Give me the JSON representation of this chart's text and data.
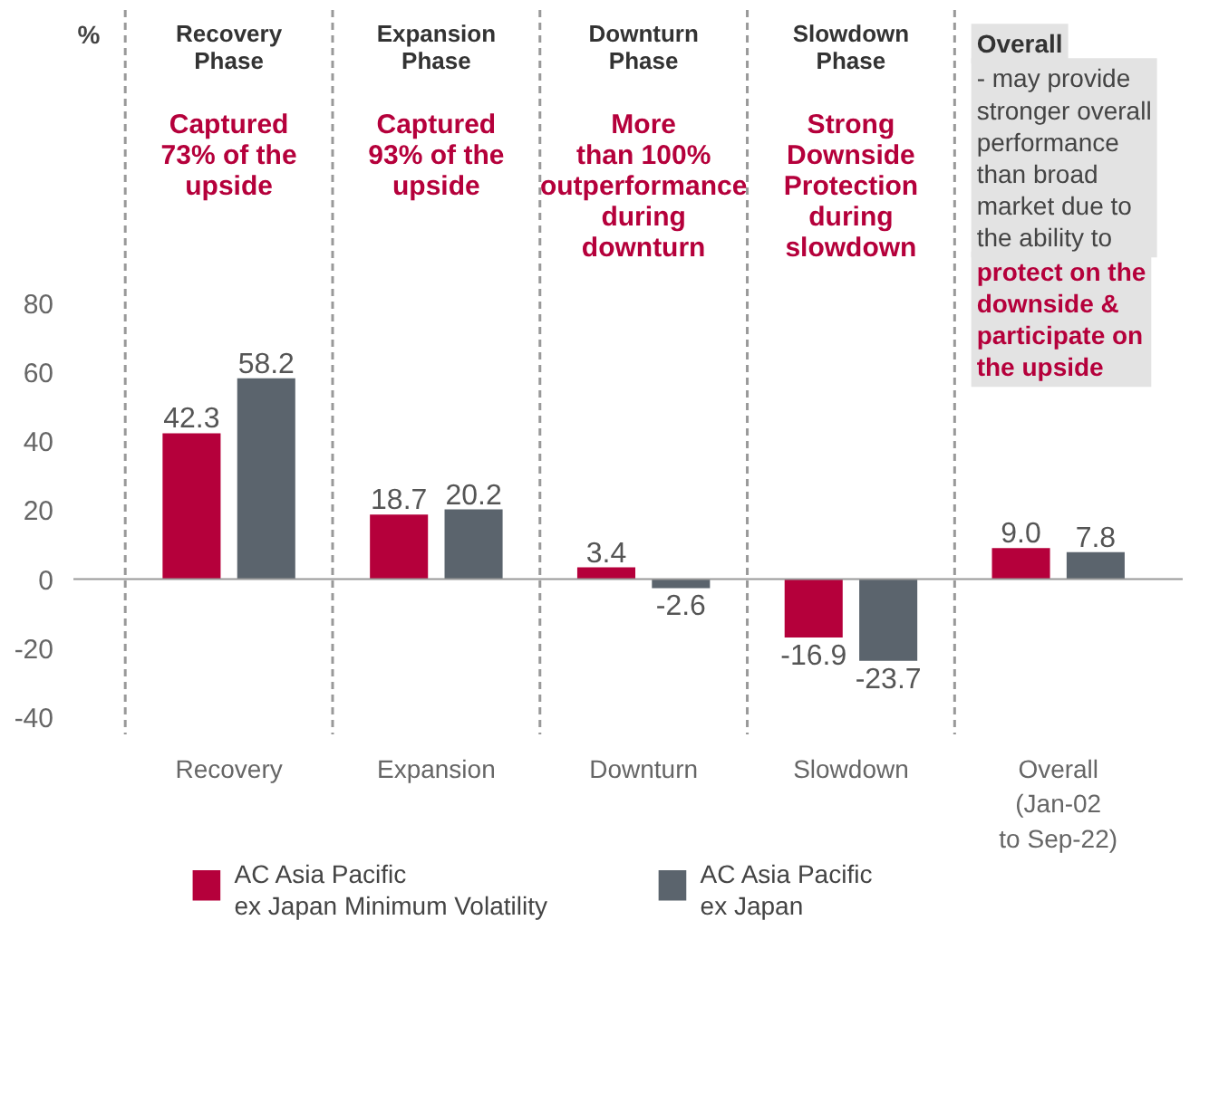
{
  "chart_data": {
    "type": "bar",
    "ylabel": "%",
    "categories": [
      "Recovery",
      "Expansion",
      "Downturn",
      "Slowdown",
      "Overall\n(Jan-02\nto Sep-22)"
    ],
    "series": [
      {
        "name": "AC Asia Pacific\nex Japan Minimum Volatility",
        "color": "#b5003b",
        "values": [
          42.3,
          18.7,
          3.4,
          -16.9,
          9.0
        ],
        "value_labels": [
          "42.3",
          "18.7",
          "3.4",
          "-16.9",
          "9.0"
        ]
      },
      {
        "name": "AC Asia Pacific\nex Japan",
        "color": "#5b646d",
        "values": [
          58.2,
          20.2,
          -2.6,
          -23.7,
          7.8
        ],
        "value_labels": [
          "58.2",
          "20.2",
          "-2.6",
          "-23.7",
          "7.8"
        ]
      }
    ],
    "ylim": [
      -45,
      165
    ],
    "yticks": [
      -40,
      -20,
      0,
      20,
      40,
      60,
      80
    ],
    "grid": false,
    "legend": "bottom",
    "annotations": [
      "Recovery\nPhase",
      "Captured\n73% of the\nupside",
      "Expansion\nPhase",
      "Captured\n93% of the\nupside",
      "Downturn\nPhase",
      "More\nthan 100%\noutperformance\nduring\ndownturn",
      "Slowdown\nPhase",
      "Strong\nDownside\nProtection\nduring\nslowdown",
      "Overall",
      "- may provide\nstronger overall\nperformance\nthan broad\nmarket due to\nthe ability to",
      "protect on the\ndownside &\nparticipate on\nthe upside"
    ]
  }
}
